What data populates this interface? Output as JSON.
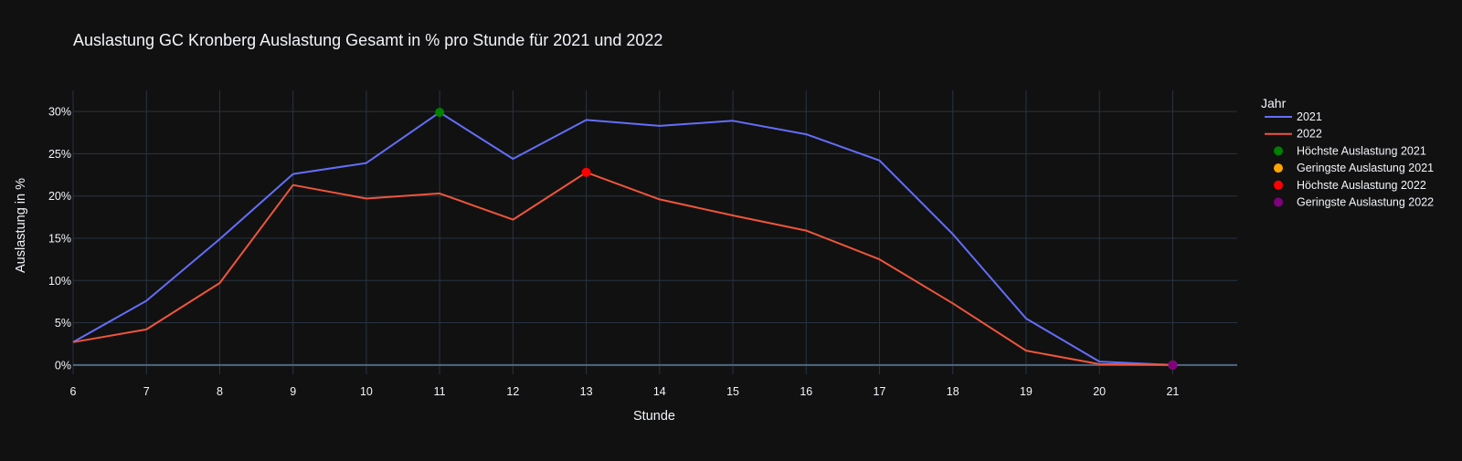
{
  "chart_data": {
    "type": "line",
    "title": "Auslastung GC Kronberg Auslastung Gesamt in % pro Stunde für 2021 und 2022",
    "xlabel": "Stunde",
    "ylabel": "Auslastung in %",
    "x": [
      6,
      7,
      8,
      9,
      10,
      11,
      12,
      13,
      14,
      15,
      16,
      17,
      18,
      19,
      20,
      21
    ],
    "xlim": [
      6,
      21.88
    ],
    "ylim": [
      -1.1,
      32.5
    ],
    "x_ticks": [
      6,
      7,
      8,
      9,
      10,
      11,
      12,
      13,
      14,
      15,
      16,
      17,
      18,
      19,
      20,
      21
    ],
    "y_ticks": [
      0,
      5,
      10,
      15,
      20,
      25,
      30
    ],
    "y_tick_labels": [
      "0%",
      "5%",
      "10%",
      "15%",
      "20%",
      "25%",
      "30%"
    ],
    "grid": true,
    "background_color": "#111111",
    "grid_color": "#283442",
    "legend_title": "Jahr",
    "legend_position": "right",
    "series": [
      {
        "name": "2021",
        "color": "#636efa",
        "values": [
          2.7,
          7.6,
          14.9,
          22.6,
          23.9,
          29.9,
          24.4,
          29.0,
          28.3,
          28.9,
          27.3,
          24.2,
          15.5,
          5.5,
          0.4,
          0.0
        ]
      },
      {
        "name": "2022",
        "color": "#EF553B",
        "values": [
          2.7,
          4.2,
          9.7,
          21.3,
          19.7,
          20.3,
          17.2,
          22.8,
          19.6,
          17.7,
          15.9,
          12.5,
          7.3,
          1.7,
          0.1,
          0.0
        ]
      }
    ],
    "markers": [
      {
        "name": "Höchste Auslastung 2021",
        "color": "#008000",
        "x": 11,
        "y": 29.9
      },
      {
        "name": "Geringste Auslastung 2021",
        "color": "#FFA500",
        "x": 21,
        "y": 0.0
      },
      {
        "name": "Höchste Auslastung 2022",
        "color": "#FF0000",
        "x": 13,
        "y": 22.8
      },
      {
        "name": "Geringste Auslastung 2022",
        "color": "#800080",
        "x": 21,
        "y": 0.0
      }
    ]
  }
}
